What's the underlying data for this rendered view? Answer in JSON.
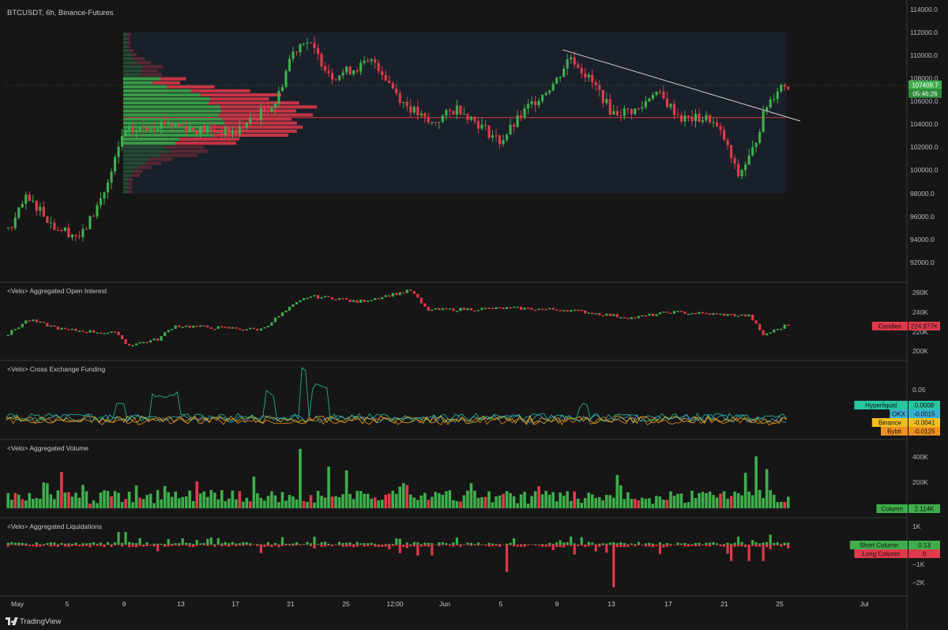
{
  "symbol_title": "BTCUSDT, 6h, Binance-Futures",
  "brand": "TradingView",
  "colors": {
    "bg": "#161616",
    "up": "#3fae4c",
    "down": "#e03a4b",
    "grid": "#2a2a2a",
    "sep": "#3a3a3a",
    "profile_box": "#1f2a3a"
  },
  "price_pane": {
    "y_ticks": [
      "114000.0",
      "112000.0",
      "110000.0",
      "108000.0",
      "106000.0",
      "104000.0",
      "102000.0",
      "100000.0",
      "98000.0",
      "96000.0",
      "94000.0",
      "92000.0"
    ],
    "last_price": "107409.7",
    "countdown": "05:46:26",
    "poc_level": 104600
  },
  "panes": [
    {
      "title": "<Velo> Aggregated Open Interest",
      "ticks": [
        "260K",
        "240K",
        "220K",
        "200K"
      ],
      "badges": [
        {
          "label": "Candles",
          "value": "224.977K",
          "color": "#e03a4b"
        }
      ]
    },
    {
      "title": "<Velo> Cross Exchange Funding",
      "ticks": [
        "0.05"
      ],
      "badges": [
        {
          "label": "Hyperliquid",
          "value": "0.0008",
          "color": "#26c6a0"
        },
        {
          "label": "OKX",
          "value": "-0.0015",
          "color": "#3ab0d0"
        },
        {
          "label": "Binance",
          "value": "-0.0041",
          "color": "#f0c020"
        },
        {
          "label": "Bybit",
          "value": "-0.0125",
          "color": "#f09020"
        }
      ]
    },
    {
      "title": "<Velo> Aggregated Volume",
      "ticks": [
        "400K",
        "200K"
      ],
      "badges": [
        {
          "label": "Column",
          "value": "2.114K",
          "color": "#3fae4c"
        }
      ]
    },
    {
      "title": "<Velo> Aggregated Liquidations",
      "ticks": [
        "1K",
        "0",
        "−1K",
        "−2K"
      ],
      "badges": [
        {
          "label": "Short Column",
          "value": "0.13",
          "color": "#3fae4c"
        },
        {
          "label": "Long Column",
          "value": "0",
          "color": "#e03a4b"
        }
      ]
    }
  ],
  "x_axis": [
    "May",
    "5",
    "9",
    "13",
    "17",
    "21",
    "25",
    "12:00",
    "Jun",
    "5",
    "9",
    "13",
    "17",
    "21",
    "25",
    "Jul"
  ],
  "chart_data": {
    "type": "candlestick",
    "interval": "6h",
    "price_series_anchors": [
      {
        "x": "May 1",
        "y": 95000
      },
      {
        "x": "May 2",
        "y": 97500
      },
      {
        "x": "May 3",
        "y": 96800
      },
      {
        "x": "May 4",
        "y": 95200
      },
      {
        "x": "May 6",
        "y": 94200
      },
      {
        "x": "May 7",
        "y": 96500
      },
      {
        "x": "May 8",
        "y": 99000
      },
      {
        "x": "May 9",
        "y": 103200
      },
      {
        "x": "May 12",
        "y": 104200
      },
      {
        "x": "May 14",
        "y": 103600
      },
      {
        "x": "May 17",
        "y": 103300
      },
      {
        "x": "May 20",
        "y": 106000
      },
      {
        "x": "May 21",
        "y": 110000
      },
      {
        "x": "May 22",
        "y": 111500
      },
      {
        "x": "May 24",
        "y": 108200
      },
      {
        "x": "May 27",
        "y": 109500
      },
      {
        "x": "May 29",
        "y": 106000
      },
      {
        "x": "May 31",
        "y": 104000
      },
      {
        "x": "Jun 2",
        "y": 105500
      },
      {
        "x": "Jun 5",
        "y": 102500
      },
      {
        "x": "Jun 7",
        "y": 105500
      },
      {
        "x": "Jun 9",
        "y": 107800
      },
      {
        "x": "Jun 10",
        "y": 110000
      },
      {
        "x": "Jun 12",
        "y": 107000
      },
      {
        "x": "Jun 13",
        "y": 105000
      },
      {
        "x": "Jun 15",
        "y": 105300
      },
      {
        "x": "Jun 16",
        "y": 107000
      },
      {
        "x": "Jun 18",
        "y": 104500
      },
      {
        "x": "Jun 20",
        "y": 104500
      },
      {
        "x": "Jun 21",
        "y": 102800
      },
      {
        "x": "Jun 22",
        "y": 99500
      },
      {
        "x": "Jun 23",
        "y": 101500
      },
      {
        "x": "Jun 24",
        "y": 105500
      },
      {
        "x": "Jun 25",
        "y": 107409.7
      }
    ],
    "open_interest_range": [
      200000,
      265000
    ],
    "volume_max": 450000,
    "liquidations_range": [
      -2400,
      1200
    ]
  }
}
